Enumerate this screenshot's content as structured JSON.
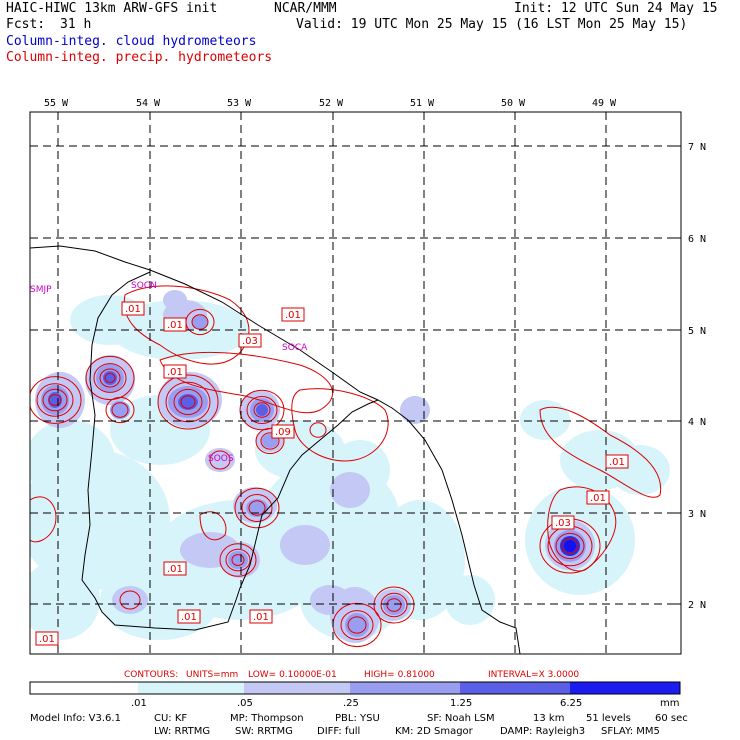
{
  "header": {
    "model_line": "HAIC-HIWC 13km ARW-GFS init",
    "org": "NCAR/MMM",
    "init": "Init: 12 UTC Sun 24 May 15",
    "fcst_label": "Fcst:",
    "fcst_value": "31 h",
    "valid": "Valid: 19 UTC Mon 25 May 15 (16 LST Mon 25 May 15)",
    "field_cloud": "Column-integ. cloud hydrometeors",
    "field_precip": "Column-integ. precip. hydrometeors"
  },
  "colors": {
    "cloud_text": "#0000cc",
    "precip_contour": "#dd0000",
    "station": "#cc00cc",
    "fill_levels": [
      "#ffffff",
      "#d8f4fb",
      "#c3c8f4",
      "#9a9ef0",
      "#5b5fe6",
      "#2a2ee0",
      "#1212f0"
    ]
  },
  "map": {
    "lon_labels": [
      "55 W",
      "54 W",
      "53 W",
      "52 W",
      "51 W",
      "50 W",
      "49 W"
    ],
    "lat_labels": [
      "7 N",
      "6 N",
      "5 N",
      "4 N",
      "3 N",
      "2 N"
    ],
    "stations": [
      "SMJP",
      "SOCN",
      "SOCA",
      "SOOS"
    ],
    "contour_labels": [
      ".01",
      ".01",
      ".03",
      ".01",
      ".01",
      ".09",
      ".01",
      ".01",
      ".03",
      ".01",
      ".01",
      ".01",
      ".01"
    ]
  },
  "contour_info": {
    "contours": "CONTOURS:",
    "units": "UNITS=mm",
    "low": "LOW= 0.10000E-01",
    "high": "HIGH= 0.81000",
    "interval": "INTERVAL=X  3.0000"
  },
  "colorbar": {
    "ticks": [
      ".01",
      ".05",
      ".25",
      "1.25",
      "6.25"
    ],
    "unit": "mm"
  },
  "model_info": {
    "line1": [
      "Model Info: V3.6.1",
      "CU: KF",
      "MP: Thompson",
      "PBL: YSU",
      "SF: Noah LSM",
      "13 km",
      "51 levels",
      "60 sec"
    ],
    "line2": [
      "LW: RRTMG",
      "SW: RRTMG",
      "DIFF: full",
      "KM: 2D Smagor",
      "DAMP: Rayleigh3",
      "SFLAY: MM5"
    ]
  }
}
